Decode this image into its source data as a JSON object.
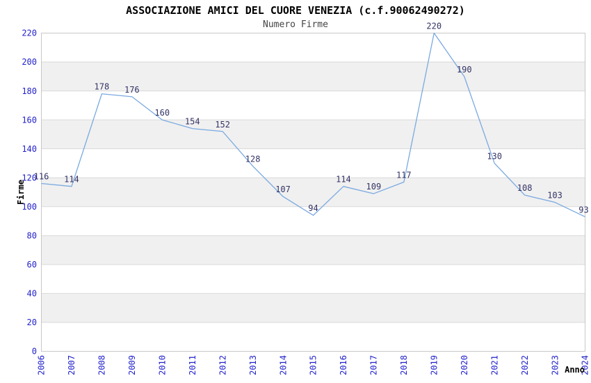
{
  "page": {
    "background": "#ffffff"
  },
  "chart_data": {
    "type": "line",
    "title": "ASSOCIAZIONE AMICI DEL CUORE VENEZIA (c.f.90062490272)",
    "subtitle": "Numero Firme",
    "xlabel": "Anno",
    "ylabel": "Firme",
    "categories": [
      "2006",
      "2007",
      "2008",
      "2009",
      "2010",
      "2011",
      "2012",
      "2013",
      "2014",
      "2015",
      "2016",
      "2017",
      "2018",
      "2019",
      "2020",
      "2021",
      "2022",
      "2023",
      "2024"
    ],
    "series": [
      {
        "name": "Numero Firme",
        "values": [
          116,
          114,
          178,
          176,
          160,
          154,
          152,
          128,
          107,
          94,
          114,
          109,
          117,
          220,
          190,
          130,
          108,
          103,
          93
        ]
      }
    ],
    "ylim": [
      0,
      220
    ],
    "ytick_step": 20,
    "grid": "horizontal-only",
    "legend": "none",
    "data_labels": "shown-above-points",
    "x_tick_rotation": -90,
    "colors": {
      "line": "#7aa9e0",
      "tick_label": "#2222cc",
      "data_label": "#333366",
      "band_fill": "#f0f0f0",
      "gridline": "#d9d9d9",
      "plot_border": "#c8c8c8",
      "title": "#000000",
      "subtitle": "#444444",
      "axis_title": "#000000",
      "plot_background": "#ffffff"
    }
  }
}
